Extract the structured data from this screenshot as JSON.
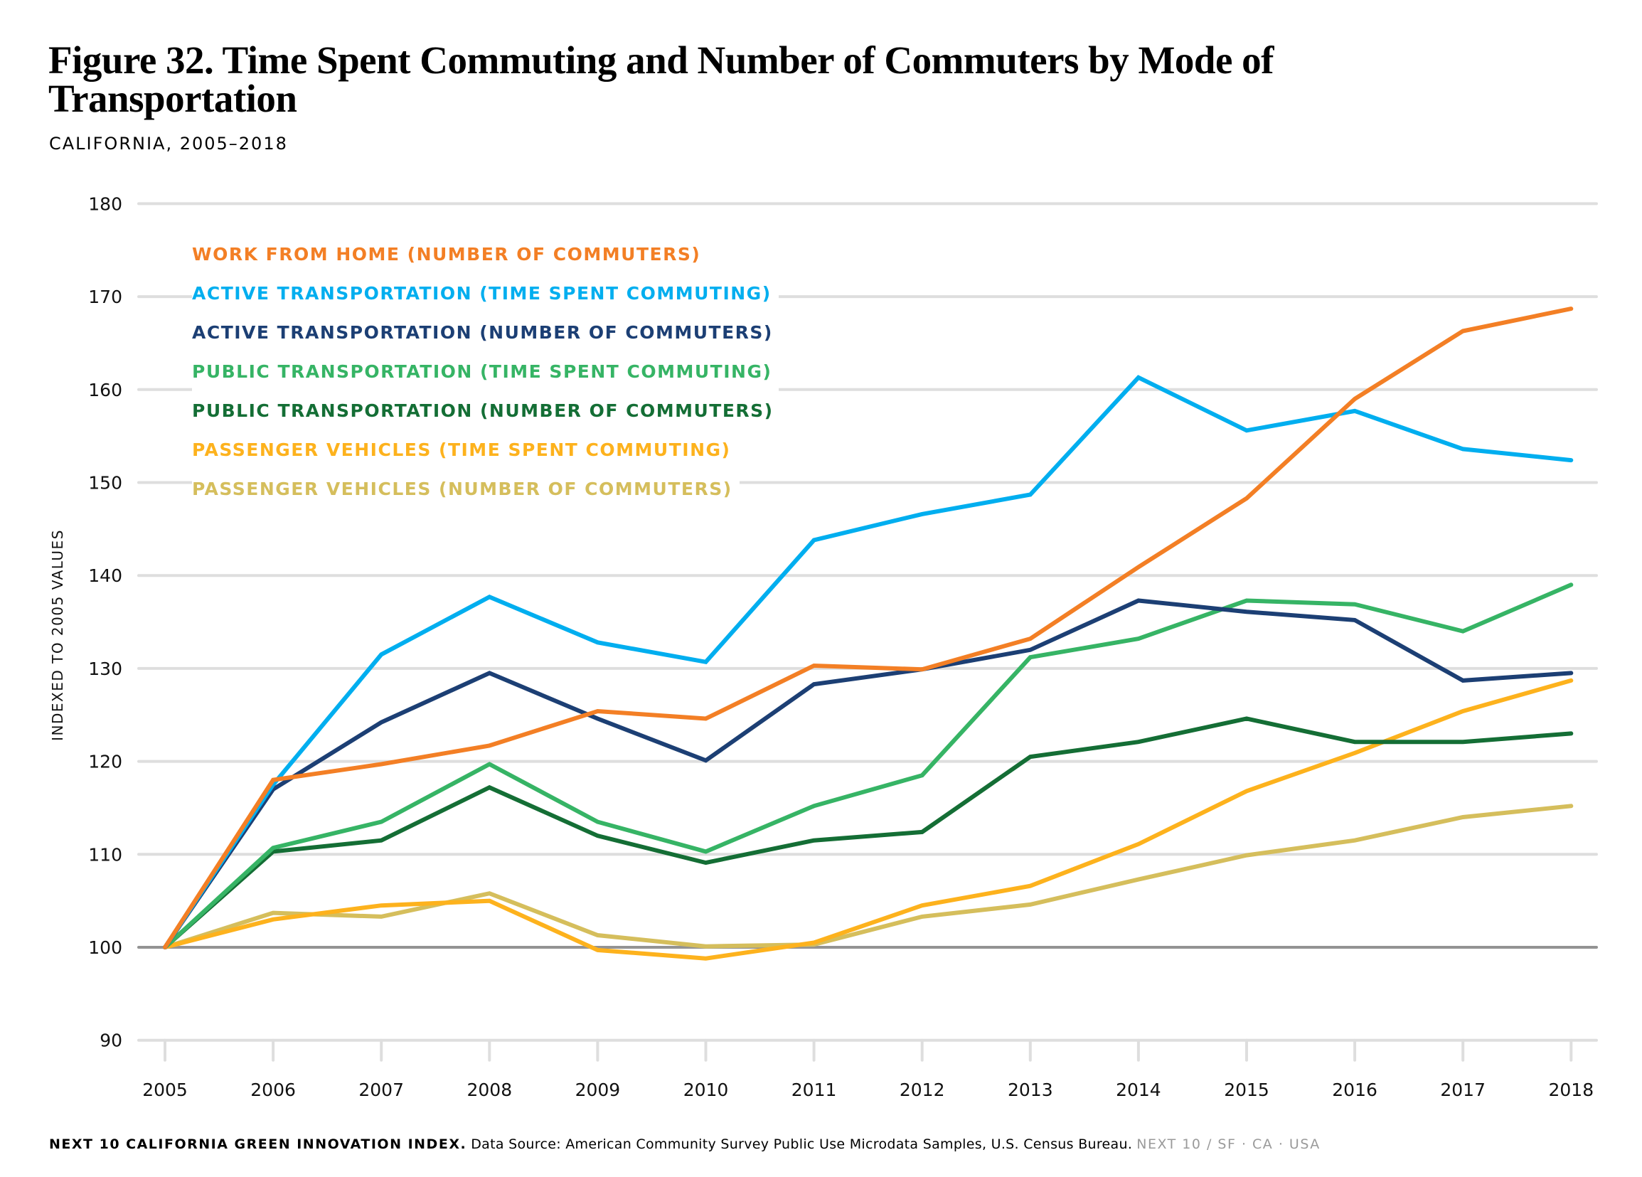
{
  "header": {
    "title": "Figure 32. Time Spent Commuting and Number of Commuters by Mode of Transportation",
    "subtitle": "CALIFORNIA, 2005–2018"
  },
  "footer": {
    "publisher": "NEXT 10 CALIFORNIA GREEN INNOVATION INDEX.",
    "source": "Data Source: American Community Survey Public Use Microdata Samples, U.S. Census Bureau.",
    "brand": "NEXT 10  /  SF · CA · USA"
  },
  "chart_data": {
    "type": "line",
    "title": "Figure 32. Time Spent Commuting and Number of Commuters by Mode of Transportation",
    "subtitle": "CALIFORNIA, 2005–2018",
    "xlabel": "",
    "ylabel": "INDEXED TO 2005 VALUES",
    "ylim": [
      90,
      180
    ],
    "yticks": [
      90,
      100,
      110,
      120,
      130,
      140,
      150,
      160,
      170,
      180
    ],
    "baseline": 100,
    "grid": true,
    "legend_position": "top-left",
    "x": [
      "2005",
      "2006",
      "2007",
      "2008",
      "2009",
      "2010",
      "2011",
      "2012",
      "2013",
      "2014",
      "2015",
      "2016",
      "2017",
      "2018"
    ],
    "series": [
      {
        "name": "WORK FROM HOME (NUMBER OF COMMUTERS)",
        "color": "#F37F25",
        "values": [
          100,
          118.0,
          119.7,
          121.7,
          125.4,
          124.6,
          130.3,
          129.9,
          133.2,
          140.9,
          148.3,
          159.0,
          166.3,
          168.7
        ]
      },
      {
        "name": "ACTIVE TRANSPORTATION (TIME SPENT COMMUTING)",
        "color": "#00AEEF",
        "values": [
          100,
          117.5,
          131.5,
          137.7,
          132.8,
          130.7,
          143.8,
          146.6,
          148.7,
          161.3,
          155.6,
          157.7,
          153.6,
          152.4
        ]
      },
      {
        "name": "ACTIVE TRANSPORTATION (NUMBER OF COMMUTERS)",
        "color": "#1C3F74",
        "values": [
          100,
          117.0,
          124.2,
          129.5,
          124.6,
          120.1,
          128.3,
          129.9,
          132.0,
          137.3,
          136.1,
          135.2,
          128.7,
          129.5
        ]
      },
      {
        "name": "PUBLIC TRANSPORTATION (TIME SPENT COMMUTING)",
        "color": "#36B465",
        "values": [
          100,
          110.7,
          113.5,
          119.7,
          113.5,
          110.3,
          115.2,
          118.5,
          131.2,
          133.2,
          137.3,
          136.9,
          134.0,
          139.0
        ]
      },
      {
        "name": "PUBLIC TRANSPORTATION (NUMBER OF COMMUTERS)",
        "color": "#146E35",
        "values": [
          100,
          110.3,
          111.5,
          117.2,
          112.0,
          109.1,
          111.5,
          112.4,
          120.5,
          122.1,
          124.6,
          122.1,
          122.1,
          123.0
        ]
      },
      {
        "name": "PASSENGER VEHICLES (TIME SPENT COMMUTING)",
        "color": "#FDB21D",
        "values": [
          100,
          103.0,
          104.5,
          105.0,
          99.7,
          98.8,
          100.5,
          104.5,
          106.6,
          111.1,
          116.8,
          120.9,
          125.4,
          128.7
        ]
      },
      {
        "name": "PASSENGER VEHICLES (NUMBER OF COMMUTERS)",
        "color": "#D5BE5C",
        "values": [
          100,
          103.7,
          103.3,
          105.8,
          101.3,
          100.1,
          100.3,
          103.3,
          104.6,
          107.3,
          109.9,
          111.5,
          114.0,
          115.2
        ]
      }
    ]
  }
}
